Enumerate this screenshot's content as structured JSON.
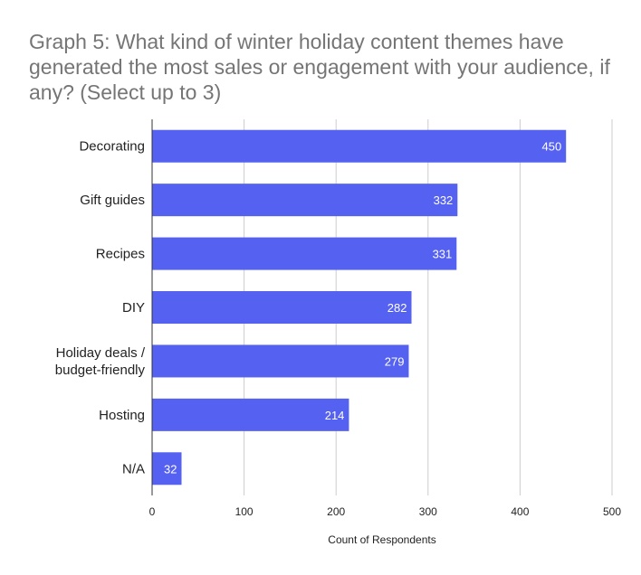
{
  "chart_data": {
    "type": "bar",
    "orientation": "horizontal",
    "title": "Graph 5: What kind of winter holiday content themes have generated the most sales or engagement with your audience, if any? (Select up to 3)",
    "categories": [
      [
        "Decorating"
      ],
      [
        "Gift guides"
      ],
      [
        "Recipes"
      ],
      [
        "DIY"
      ],
      [
        "Holiday deals /",
        "budget-friendly"
      ],
      [
        "Hosting"
      ],
      [
        "N/A"
      ]
    ],
    "values": [
      450,
      332,
      331,
      282,
      279,
      214,
      32
    ],
    "xlabel": "Count of Respondents",
    "ylabel": "",
    "xlim": [
      0,
      500
    ],
    "xticks": [
      0,
      100,
      200,
      300,
      400,
      500
    ],
    "bar_color": "#5561F0",
    "grid": true,
    "legend": "none"
  }
}
